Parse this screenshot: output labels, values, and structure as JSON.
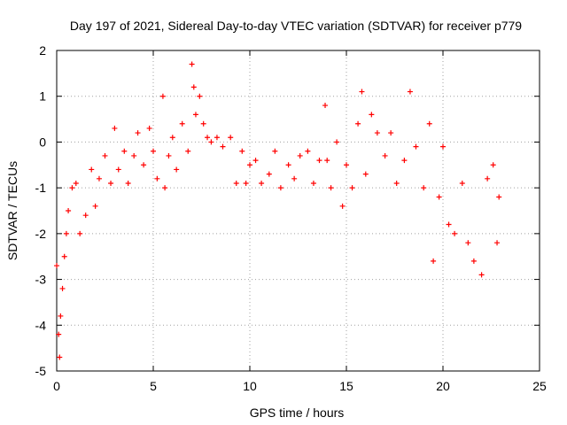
{
  "chart_data": {
    "type": "scatter",
    "title": "Day 197 of 2021, Sidereal Day-to-day VTEC variation (SDTVAR) for receiver p779",
    "xlabel": "GPS time / hours",
    "ylabel": "SDTVAR / TECUs",
    "xlim": [
      0,
      25
    ],
    "ylim": [
      -5,
      2
    ],
    "xticks": [
      0,
      5,
      10,
      15,
      20,
      25
    ],
    "yticks": [
      -5,
      -4,
      -3,
      -2,
      -1,
      0,
      1,
      2
    ],
    "grid": true,
    "marker": "+",
    "series": [
      {
        "name": "SDTVAR p779",
        "color": "#ff0000",
        "x": [
          0.0,
          0.1,
          0.15,
          0.2,
          0.3,
          0.4,
          0.5,
          0.6,
          0.8,
          1.0,
          1.2,
          1.5,
          1.8,
          2.0,
          2.2,
          2.5,
          2.8,
          3.0,
          3.2,
          3.5,
          3.7,
          4.0,
          4.2,
          4.5,
          4.8,
          5.0,
          5.2,
          5.5,
          5.6,
          5.8,
          6.0,
          6.2,
          6.5,
          6.8,
          7.0,
          7.1,
          7.2,
          7.4,
          7.6,
          7.8,
          8.0,
          8.3,
          8.6,
          9.0,
          9.3,
          9.6,
          9.8,
          10.0,
          10.3,
          10.6,
          11.0,
          11.3,
          11.6,
          12.0,
          12.3,
          12.6,
          13.0,
          13.3,
          13.6,
          13.9,
          14.0,
          14.2,
          14.5,
          14.8,
          15.0,
          15.3,
          15.6,
          15.8,
          16.0,
          16.3,
          16.6,
          17.0,
          17.3,
          17.6,
          18.0,
          18.3,
          18.6,
          19.0,
          19.3,
          19.5,
          19.8,
          20.0,
          20.3,
          20.6,
          21.0,
          21.3,
          21.6,
          22.0,
          22.3,
          22.6,
          22.8,
          22.9
        ],
        "y": [
          -2.7,
          -4.2,
          -4.7,
          -3.8,
          -3.2,
          -2.5,
          -2.0,
          -1.5,
          -1.0,
          -0.9,
          -2.0,
          -1.6,
          -0.6,
          -1.4,
          -0.8,
          -0.3,
          -0.9,
          0.3,
          -0.6,
          -0.2,
          -0.9,
          -0.3,
          0.2,
          -0.5,
          0.3,
          -0.2,
          -0.8,
          1.0,
          -1.0,
          -0.3,
          0.1,
          -0.6,
          0.4,
          -0.2,
          1.7,
          1.2,
          0.6,
          1.0,
          0.4,
          0.1,
          0.0,
          0.1,
          -0.1,
          0.1,
          -0.9,
          -0.2,
          -0.9,
          -0.5,
          -0.4,
          -0.9,
          -0.7,
          -0.2,
          -1.0,
          -0.5,
          -0.8,
          -0.3,
          -0.2,
          -0.9,
          -0.4,
          0.8,
          -0.4,
          -1.0,
          0.0,
          -1.4,
          -0.5,
          -1.0,
          0.4,
          1.1,
          -0.7,
          0.6,
          0.2,
          -0.3,
          0.2,
          -0.9,
          -0.4,
          1.1,
          -0.1,
          -1.0,
          0.4,
          -2.6,
          -1.2,
          -0.1,
          -1.8,
          -2.0,
          -0.9,
          -2.2,
          -2.6,
          -2.9,
          -0.8,
          -0.5,
          -2.2,
          -1.2
        ]
      }
    ]
  }
}
